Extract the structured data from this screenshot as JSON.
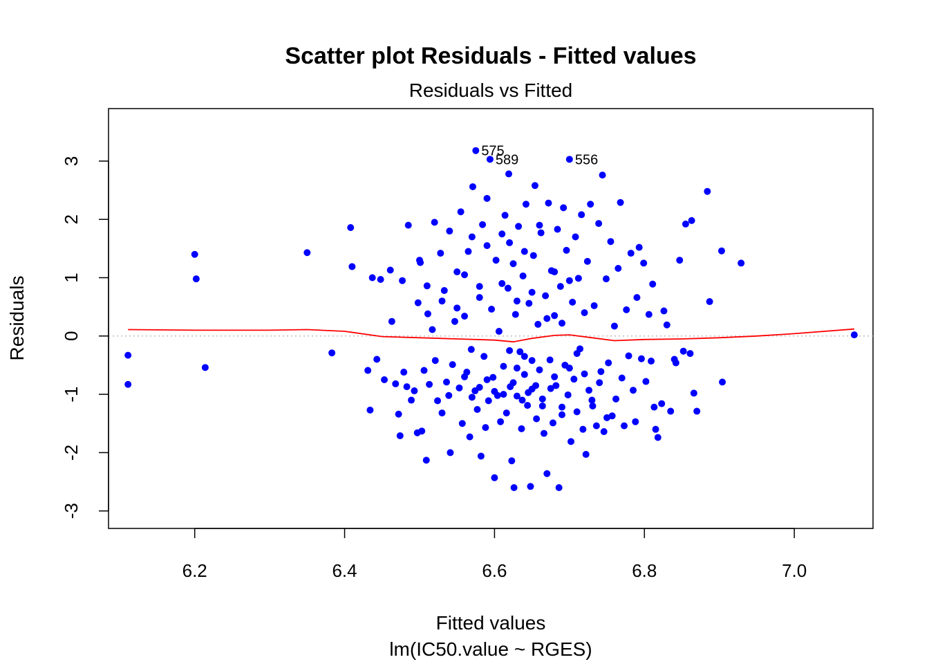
{
  "chart_data": {
    "type": "scatter",
    "title": "Scatter plot Residuals - Fitted values",
    "subtitle": "Residuals vs Fitted",
    "xlabel": "Fitted values",
    "xlabel_sub": "lm(IC50.value ~ RGES)",
    "ylabel": "Residuals",
    "xlim": [
      6.085,
      7.105
    ],
    "ylim": [
      -3.3,
      3.9
    ],
    "xticks": [
      6.2,
      6.4,
      6.6,
      6.8,
      7.0
    ],
    "xtick_labels": [
      "6.2",
      "6.4",
      "6.6",
      "6.8",
      "7.0"
    ],
    "yticks": [
      -3,
      -2,
      -1,
      0,
      1,
      2,
      3
    ],
    "ytick_labels": [
      "-3",
      "-2",
      "-1",
      "0",
      "1",
      "2",
      "3"
    ],
    "point_color": "#0000ff",
    "smooth_color": "#ff0000",
    "zero_line_color": "#bebebe",
    "grid": false,
    "points": [
      {
        "x": 6.111,
        "y": -0.33
      },
      {
        "x": 6.111,
        "y": -0.83
      },
      {
        "x": 6.2,
        "y": 1.4
      },
      {
        "x": 6.202,
        "y": 0.98
      },
      {
        "x": 6.214,
        "y": -0.54
      },
      {
        "x": 6.35,
        "y": 1.43
      },
      {
        "x": 6.383,
        "y": -0.29
      },
      {
        "x": 6.408,
        "y": 1.86
      },
      {
        "x": 6.41,
        "y": 1.19
      },
      {
        "x": 6.431,
        "y": -0.59
      },
      {
        "x": 6.434,
        "y": -1.27
      },
      {
        "x": 6.437,
        "y": 1.0
      },
      {
        "x": 6.443,
        "y": -0.4
      },
      {
        "x": 6.448,
        "y": 0.97
      },
      {
        "x": 6.453,
        "y": -0.75
      },
      {
        "x": 6.461,
        "y": 1.13
      },
      {
        "x": 6.463,
        "y": 0.25
      },
      {
        "x": 6.468,
        "y": -0.82
      },
      {
        "x": 6.472,
        "y": -1.34
      },
      {
        "x": 6.474,
        "y": -1.71
      },
      {
        "x": 6.477,
        "y": 0.95
      },
      {
        "x": 6.479,
        "y": -0.62
      },
      {
        "x": 6.483,
        "y": -0.87
      },
      {
        "x": 6.485,
        "y": 1.9
      },
      {
        "x": 6.489,
        "y": -1.1
      },
      {
        "x": 6.493,
        "y": -0.94
      },
      {
        "x": 6.497,
        "y": -1.66
      },
      {
        "x": 6.498,
        "y": 0.57
      },
      {
        "x": 6.501,
        "y": 1.26
      },
      {
        "x": 6.503,
        "y": -1.63
      },
      {
        "x": 6.506,
        "y": -0.59
      },
      {
        "x": 6.509,
        "y": -2.13
      },
      {
        "x": 6.511,
        "y": 0.38
      },
      {
        "x": 6.513,
        "y": -0.83
      },
      {
        "x": 6.517,
        "y": 0.11
      },
      {
        "x": 6.521,
        "y": -0.42
      },
      {
        "x": 6.524,
        "y": -1.11
      },
      {
        "x": 6.528,
        "y": 1.42
      },
      {
        "x": 6.53,
        "y": -1.32
      },
      {
        "x": 6.533,
        "y": 0.78
      },
      {
        "x": 6.536,
        "y": -0.79
      },
      {
        "x": 6.539,
        "y": -1.02
      },
      {
        "x": 6.541,
        "y": -2.0
      },
      {
        "x": 6.544,
        "y": -0.49
      },
      {
        "x": 6.547,
        "y": 0.25
      },
      {
        "x": 6.55,
        "y": 1.1
      },
      {
        "x": 6.553,
        "y": -0.89
      },
      {
        "x": 6.555,
        "y": 2.13
      },
      {
        "x": 6.557,
        "y": -1.5
      },
      {
        "x": 6.56,
        "y": 0.34
      },
      {
        "x": 6.563,
        "y": -0.62
      },
      {
        "x": 6.565,
        "y": 1.45
      },
      {
        "x": 6.567,
        "y": -1.73
      },
      {
        "x": 6.569,
        "y": -0.23
      },
      {
        "x": 6.571,
        "y": 2.56
      },
      {
        "x": 6.574,
        "y": -0.94
      },
      {
        "x": 6.575,
        "y": 3.18
      },
      {
        "x": 6.577,
        "y": -1.26
      },
      {
        "x": 6.58,
        "y": 0.66
      },
      {
        "x": 6.582,
        "y": -2.06
      },
      {
        "x": 6.584,
        "y": 1.91
      },
      {
        "x": 6.586,
        "y": -0.35
      },
      {
        "x": 6.588,
        "y": -1.57
      },
      {
        "x": 6.59,
        "y": 2.36
      },
      {
        "x": 6.592,
        "y": -1.11
      },
      {
        "x": 6.594,
        "y": 3.03
      },
      {
        "x": 6.596,
        "y": 0.46
      },
      {
        "x": 6.598,
        "y": -0.71
      },
      {
        "x": 6.6,
        "y": -2.43
      },
      {
        "x": 6.602,
        "y": 1.3
      },
      {
        "x": 6.604,
        "y": -1.02
      },
      {
        "x": 6.606,
        "y": 0.08
      },
      {
        "x": 6.608,
        "y": -1.47
      },
      {
        "x": 6.61,
        "y": 1.75
      },
      {
        "x": 6.612,
        "y": -0.52
      },
      {
        "x": 6.614,
        "y": 2.07
      },
      {
        "x": 6.616,
        "y": -1.32
      },
      {
        "x": 6.618,
        "y": 0.82
      },
      {
        "x": 6.619,
        "y": 2.78
      },
      {
        "x": 6.621,
        "y": -0.87
      },
      {
        "x": 6.623,
        "y": -2.14
      },
      {
        "x": 6.625,
        "y": 1.24
      },
      {
        "x": 6.626,
        "y": -2.6
      },
      {
        "x": 6.628,
        "y": 0.37
      },
      {
        "x": 6.63,
        "y": -1.03
      },
      {
        "x": 6.632,
        "y": 1.88
      },
      {
        "x": 6.634,
        "y": -0.27
      },
      {
        "x": 6.636,
        "y": -1.59
      },
      {
        "x": 6.638,
        "y": 1.03
      },
      {
        "x": 6.64,
        "y": -0.66
      },
      {
        "x": 6.642,
        "y": 2.26
      },
      {
        "x": 6.644,
        "y": -1.19
      },
      {
        "x": 6.646,
        "y": 0.56
      },
      {
        "x": 6.648,
        "y": -2.58
      },
      {
        "x": 6.65,
        "y": -0.91
      },
      {
        "x": 6.652,
        "y": 1.38
      },
      {
        "x": 6.654,
        "y": 2.58
      },
      {
        "x": 6.656,
        "y": -1.42
      },
      {
        "x": 6.658,
        "y": 0.2
      },
      {
        "x": 6.66,
        "y": -0.58
      },
      {
        "x": 6.662,
        "y": 1.77
      },
      {
        "x": 6.664,
        "y": -1.08
      },
      {
        "x": 6.666,
        "y": -1.67
      },
      {
        "x": 6.668,
        "y": 0.69
      },
      {
        "x": 6.67,
        "y": -2.36
      },
      {
        "x": 6.672,
        "y": 2.28
      },
      {
        "x": 6.674,
        "y": -0.41
      },
      {
        "x": 6.676,
        "y": 1.12
      },
      {
        "x": 6.678,
        "y": -1.49
      },
      {
        "x": 6.68,
        "y": 0.35
      },
      {
        "x": 6.682,
        "y": -0.85
      },
      {
        "x": 6.684,
        "y": 1.83
      },
      {
        "x": 6.686,
        "y": -2.6
      },
      {
        "x": 6.688,
        "y": 0.85
      },
      {
        "x": 6.69,
        "y": -1.22
      },
      {
        "x": 6.692,
        "y": 2.2
      },
      {
        "x": 6.694,
        "y": -0.5
      },
      {
        "x": 6.696,
        "y": 1.47
      },
      {
        "x": 6.698,
        "y": -1.01
      },
      {
        "x": 6.7,
        "y": 3.03
      },
      {
        "x": 6.702,
        "y": -1.81
      },
      {
        "x": 6.704,
        "y": 0.58
      },
      {
        "x": 6.706,
        "y": -0.74
      },
      {
        "x": 6.708,
        "y": 1.7
      },
      {
        "x": 6.71,
        "y": -1.3
      },
      {
        "x": 6.712,
        "y": 0.99
      },
      {
        "x": 6.714,
        "y": -0.22
      },
      {
        "x": 6.716,
        "y": 2.08
      },
      {
        "x": 6.718,
        "y": -1.6
      },
      {
        "x": 6.72,
        "y": 0.4
      },
      {
        "x": 6.722,
        "y": -2.03
      },
      {
        "x": 6.724,
        "y": 1.28
      },
      {
        "x": 6.726,
        "y": -0.93
      },
      {
        "x": 6.728,
        "y": 2.26
      },
      {
        "x": 6.731,
        "y": -1.2
      },
      {
        "x": 6.733,
        "y": 0.52
      },
      {
        "x": 6.736,
        "y": -1.54
      },
      {
        "x": 6.739,
        "y": 1.93
      },
      {
        "x": 6.742,
        "y": -0.61
      },
      {
        "x": 6.744,
        "y": 2.76
      },
      {
        "x": 6.746,
        "y": -1.64
      },
      {
        "x": 6.749,
        "y": 0.98
      },
      {
        "x": 6.752,
        "y": -0.46
      },
      {
        "x": 6.755,
        "y": 1.62
      },
      {
        "x": 6.757,
        "y": -1.37
      },
      {
        "x": 6.76,
        "y": 0.17
      },
      {
        "x": 6.762,
        "y": -1.08
      },
      {
        "x": 6.765,
        "y": 1.16
      },
      {
        "x": 6.768,
        "y": 2.29
      },
      {
        "x": 6.77,
        "y": -0.72
      },
      {
        "x": 6.773,
        "y": -1.54
      },
      {
        "x": 6.776,
        "y": 0.45
      },
      {
        "x": 6.779,
        "y": -0.34
      },
      {
        "x": 6.782,
        "y": 1.42
      },
      {
        "x": 6.785,
        "y": -0.93
      },
      {
        "x": 6.788,
        "y": -1.47
      },
      {
        "x": 6.79,
        "y": 0.66
      },
      {
        "x": 6.793,
        "y": 1.52
      },
      {
        "x": 6.796,
        "y": -0.39
      },
      {
        "x": 6.799,
        "y": 1.25
      },
      {
        "x": 6.802,
        "y": -0.78
      },
      {
        "x": 6.806,
        "y": 0.37
      },
      {
        "x": 6.809,
        "y": -0.43
      },
      {
        "x": 6.811,
        "y": 0.89
      },
      {
        "x": 6.813,
        "y": -1.22
      },
      {
        "x": 6.815,
        "y": -1.6
      },
      {
        "x": 6.818,
        "y": -1.74
      },
      {
        "x": 6.823,
        "y": -1.16
      },
      {
        "x": 6.826,
        "y": 0.43
      },
      {
        "x": 6.83,
        "y": 0.19
      },
      {
        "x": 6.835,
        "y": -1.29
      },
      {
        "x": 6.84,
        "y": -0.4
      },
      {
        "x": 6.842,
        "y": -0.46
      },
      {
        "x": 6.847,
        "y": 1.3
      },
      {
        "x": 6.852,
        "y": -0.26
      },
      {
        "x": 6.855,
        "y": 1.92
      },
      {
        "x": 6.861,
        "y": -0.3
      },
      {
        "x": 6.863,
        "y": 1.98
      },
      {
        "x": 6.866,
        "y": -0.98
      },
      {
        "x": 6.87,
        "y": -1.29
      },
      {
        "x": 6.884,
        "y": 2.48
      },
      {
        "x": 6.887,
        "y": 0.59
      },
      {
        "x": 6.903,
        "y": 1.46
      },
      {
        "x": 6.904,
        "y": -0.79
      },
      {
        "x": 6.929,
        "y": 1.25
      },
      {
        "x": 7.08,
        "y": 0.02
      },
      {
        "x": 6.6,
        "y": -0.95
      },
      {
        "x": 6.612,
        "y": -1.0
      },
      {
        "x": 6.625,
        "y": -0.8
      },
      {
        "x": 6.637,
        "y": -1.1
      },
      {
        "x": 6.645,
        "y": -0.97
      },
      {
        "x": 6.655,
        "y": -0.85
      },
      {
        "x": 6.664,
        "y": -1.2
      },
      {
        "x": 6.675,
        "y": -0.9
      },
      {
        "x": 6.59,
        "y": -0.75
      },
      {
        "x": 6.58,
        "y": -0.88
      },
      {
        "x": 6.57,
        "y": -1.05
      },
      {
        "x": 6.56,
        "y": -0.7
      },
      {
        "x": 6.64,
        "y": -0.35
      },
      {
        "x": 6.65,
        "y": -0.42
      },
      {
        "x": 6.63,
        "y": -0.55
      },
      {
        "x": 6.62,
        "y": -0.25
      },
      {
        "x": 6.61,
        "y": 0.9
      },
      {
        "x": 6.62,
        "y": 1.6
      },
      {
        "x": 6.63,
        "y": 0.6
      },
      {
        "x": 6.64,
        "y": 1.45
      },
      {
        "x": 6.65,
        "y": 0.75
      },
      {
        "x": 6.66,
        "y": 1.9
      },
      {
        "x": 6.67,
        "y": 0.3
      },
      {
        "x": 6.68,
        "y": 1.1
      },
      {
        "x": 6.69,
        "y": 0.22
      },
      {
        "x": 6.7,
        "y": 0.95
      },
      {
        "x": 6.59,
        "y": 1.55
      },
      {
        "x": 6.58,
        "y": 0.85
      },
      {
        "x": 6.57,
        "y": 1.7
      },
      {
        "x": 6.56,
        "y": 1.05
      },
      {
        "x": 6.55,
        "y": 0.48
      },
      {
        "x": 6.54,
        "y": 1.8
      },
      {
        "x": 6.53,
        "y": 0.6
      },
      {
        "x": 6.52,
        "y": 1.95
      },
      {
        "x": 6.51,
        "y": 0.86
      },
      {
        "x": 6.5,
        "y": 1.3
      },
      {
        "x": 6.71,
        "y": -0.3
      },
      {
        "x": 6.72,
        "y": -0.65
      },
      {
        "x": 6.73,
        "y": -1.1
      },
      {
        "x": 6.74,
        "y": -0.8
      },
      {
        "x": 6.75,
        "y": -1.4
      },
      {
        "x": 6.7,
        "y": -0.55
      },
      {
        "x": 6.69,
        "y": -1.35
      },
      {
        "x": 6.68,
        "y": -0.7
      }
    ],
    "point_labels": [
      {
        "text": "575",
        "x": 6.575,
        "y": 3.18
      },
      {
        "text": "589",
        "x": 6.594,
        "y": 3.03
      },
      {
        "text": "556",
        "x": 6.7,
        "y": 3.03
      }
    ],
    "smooth_line": [
      {
        "x": 6.111,
        "y": 0.11
      },
      {
        "x": 6.2,
        "y": 0.1
      },
      {
        "x": 6.3,
        "y": 0.1
      },
      {
        "x": 6.35,
        "y": 0.11
      },
      {
        "x": 6.4,
        "y": 0.08
      },
      {
        "x": 6.45,
        "y": -0.01
      },
      {
        "x": 6.5,
        "y": -0.03
      },
      {
        "x": 6.55,
        "y": -0.05
      },
      {
        "x": 6.6,
        "y": -0.07
      },
      {
        "x": 6.625,
        "y": -0.1
      },
      {
        "x": 6.65,
        "y": -0.04
      },
      {
        "x": 6.68,
        "y": 0.01
      },
      {
        "x": 6.7,
        "y": 0.02
      },
      {
        "x": 6.73,
        "y": -0.03
      },
      {
        "x": 6.76,
        "y": -0.08
      },
      {
        "x": 6.8,
        "y": -0.06
      },
      {
        "x": 6.85,
        "y": -0.05
      },
      {
        "x": 6.9,
        "y": -0.03
      },
      {
        "x": 6.95,
        "y": 0.0
      },
      {
        "x": 7.0,
        "y": 0.04
      },
      {
        "x": 7.08,
        "y": 0.12
      }
    ]
  }
}
